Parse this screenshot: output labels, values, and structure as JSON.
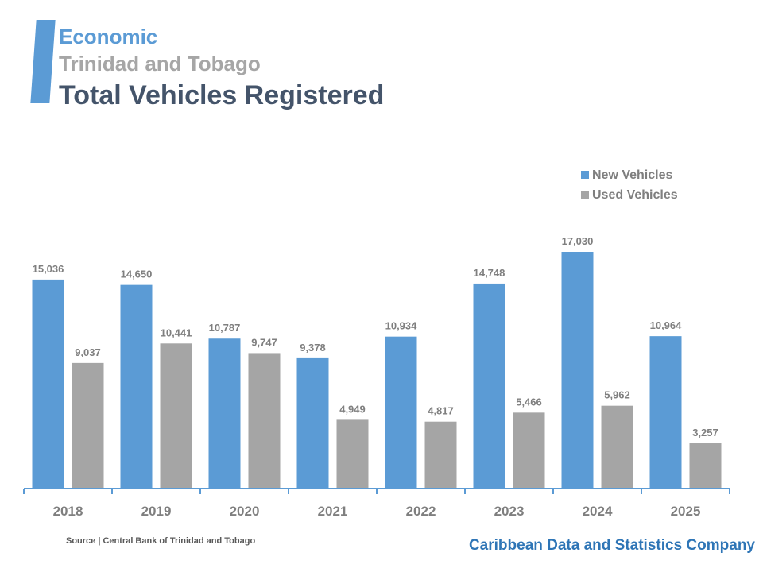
{
  "header": {
    "category": "Economic",
    "country": "Trinidad and Tobago",
    "title": "Total Vehicles Registered"
  },
  "footer": {
    "source": "Source | Central Bank of Trinidad and Tobago",
    "company": "Caribbean Data and Statistics Company"
  },
  "colors": {
    "new": "#5b9bd5",
    "used": "#a5a5a5",
    "axis": "#5b9bd5",
    "label_text": "#7f7f7f",
    "tick_text": "#7f7f7f",
    "legend_text": "#7f7f7f"
  },
  "chart_data": {
    "type": "bar",
    "categories": [
      "2018",
      "2019",
      "2020",
      "2021",
      "2022",
      "2023",
      "2024",
      "2025"
    ],
    "series": [
      {
        "name": "New Vehicles",
        "values": [
          15036,
          14650,
          10787,
          9378,
          10934,
          14748,
          17030,
          10964
        ]
      },
      {
        "name": "Used Vehicles",
        "values": [
          9037,
          10441,
          9747,
          4949,
          4817,
          5466,
          5962,
          3257
        ]
      }
    ],
    "ylim": [
      0,
      17030
    ],
    "data_labels": [
      "15,036",
      "14,650",
      "10,787",
      "9,378",
      "10,934",
      "14,748",
      "17,030",
      "10,964",
      "9,037",
      "10,441",
      "9,747",
      "4,949",
      "4,817",
      "5,466",
      "5,962",
      "3,257"
    ],
    "legend_position": "top-right",
    "grid": false,
    "xlabel": "",
    "ylabel": ""
  }
}
